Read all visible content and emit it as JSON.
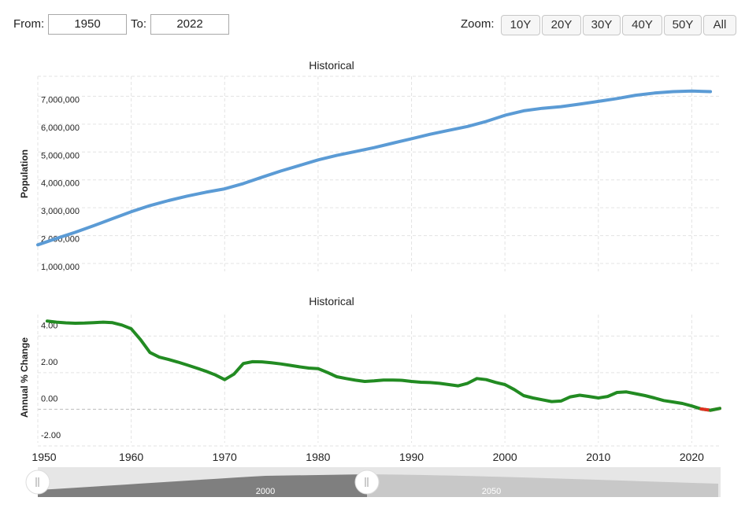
{
  "range": {
    "from_label": "From:",
    "from_value": "1950",
    "to_label": "To:",
    "to_value": "2022",
    "zoom_label": "Zoom:",
    "zoom_buttons": [
      "10Y",
      "20Y",
      "30Y",
      "40Y",
      "50Y",
      "All"
    ]
  },
  "navigator": {
    "labels": [
      "2000",
      "2050"
    ]
  },
  "chart_data": [
    {
      "type": "line",
      "title": "Historical",
      "ylabel": "Population",
      "xlim": [
        1950,
        2023
      ],
      "ylim": [
        1000000,
        8000000
      ],
      "yticks": [
        1000000,
        2000000,
        3000000,
        4000000,
        5000000,
        6000000,
        7000000
      ],
      "ytick_labels": [
        "1,000,000",
        "2,000,000",
        "3,000,000",
        "4,000,000",
        "5,000,000",
        "6,000,000",
        "7,000,000"
      ],
      "grid": true,
      "color": "#5b9bd5",
      "series": [
        {
          "x": [
            1950,
            1952,
            1954,
            1956,
            1958,
            1960,
            1962,
            1964,
            1966,
            1968,
            1970,
            1972,
            1974,
            1976,
            1978,
            1980,
            1982,
            1984,
            1986,
            1988,
            1990,
            1992,
            1994,
            1996,
            1998,
            2000,
            2002,
            2004,
            2006,
            2008,
            2010,
            2012,
            2014,
            2016,
            2018,
            2020,
            2022
          ],
          "values": [
            1950000,
            2180000,
            2400000,
            2640000,
            2890000,
            3140000,
            3360000,
            3540000,
            3700000,
            3840000,
            3960000,
            4150000,
            4380000,
            4600000,
            4800000,
            5000000,
            5160000,
            5300000,
            5440000,
            5600000,
            5760000,
            5920000,
            6060000,
            6200000,
            6380000,
            6600000,
            6760000,
            6850000,
            6910000,
            7000000,
            7100000,
            7200000,
            7320000,
            7400000,
            7450000,
            7470000,
            7450000
          ]
        }
      ]
    },
    {
      "type": "line",
      "title": "Historical",
      "ylabel": "Annual % Change",
      "xlim": [
        1950,
        2023
      ],
      "ylim": [
        -2,
        5
      ],
      "yticks": [
        -2,
        0,
        2,
        4
      ],
      "ytick_labels": [
        "-2.00",
        "0.00",
        "2.00",
        "4.00"
      ],
      "xticks": [
        1950,
        1960,
        1970,
        1980,
        1990,
        2000,
        2010,
        2020
      ],
      "grid": true,
      "color": "#228b22",
      "negative_color": "#e03020",
      "series": [
        {
          "x": [
            1951,
            1952,
            1953,
            1954,
            1955,
            1956,
            1957,
            1958,
            1959,
            1960,
            1961,
            1962,
            1963,
            1964,
            1965,
            1966,
            1967,
            1968,
            1969,
            1970,
            1971,
            1972,
            1973,
            1974,
            1975,
            1976,
            1977,
            1978,
            1979,
            1980,
            1981,
            1982,
            1983,
            1984,
            1985,
            1986,
            1987,
            1988,
            1989,
            1990,
            1991,
            1992,
            1993,
            1994,
            1995,
            1996,
            1997,
            1998,
            1999,
            2000,
            2001,
            2002,
            2003,
            2004,
            2005,
            2006,
            2007,
            2008,
            2009,
            2010,
            2011,
            2012,
            2013,
            2014,
            2015,
            2016,
            2017,
            2018,
            2019,
            2020,
            2021,
            2022,
            2023
          ],
          "values": [
            4.82,
            4.76,
            4.72,
            4.7,
            4.71,
            4.73,
            4.76,
            4.73,
            4.6,
            4.4,
            3.8,
            3.1,
            2.85,
            2.72,
            2.58,
            2.42,
            2.25,
            2.08,
            1.88,
            1.62,
            1.92,
            2.5,
            2.6,
            2.59,
            2.54,
            2.48,
            2.4,
            2.32,
            2.25,
            2.22,
            2.01,
            1.78,
            1.68,
            1.59,
            1.52,
            1.55,
            1.6,
            1.6,
            1.58,
            1.52,
            1.48,
            1.46,
            1.42,
            1.35,
            1.28,
            1.42,
            1.68,
            1.62,
            1.47,
            1.35,
            1.08,
            0.75,
            0.62,
            0.52,
            0.42,
            0.45,
            0.68,
            0.77,
            0.7,
            0.62,
            0.7,
            0.92,
            0.95,
            0.85,
            0.75,
            0.62,
            0.48,
            0.4,
            0.32,
            0.18,
            0.02,
            -0.05,
            0.05
          ]
        }
      ]
    }
  ]
}
